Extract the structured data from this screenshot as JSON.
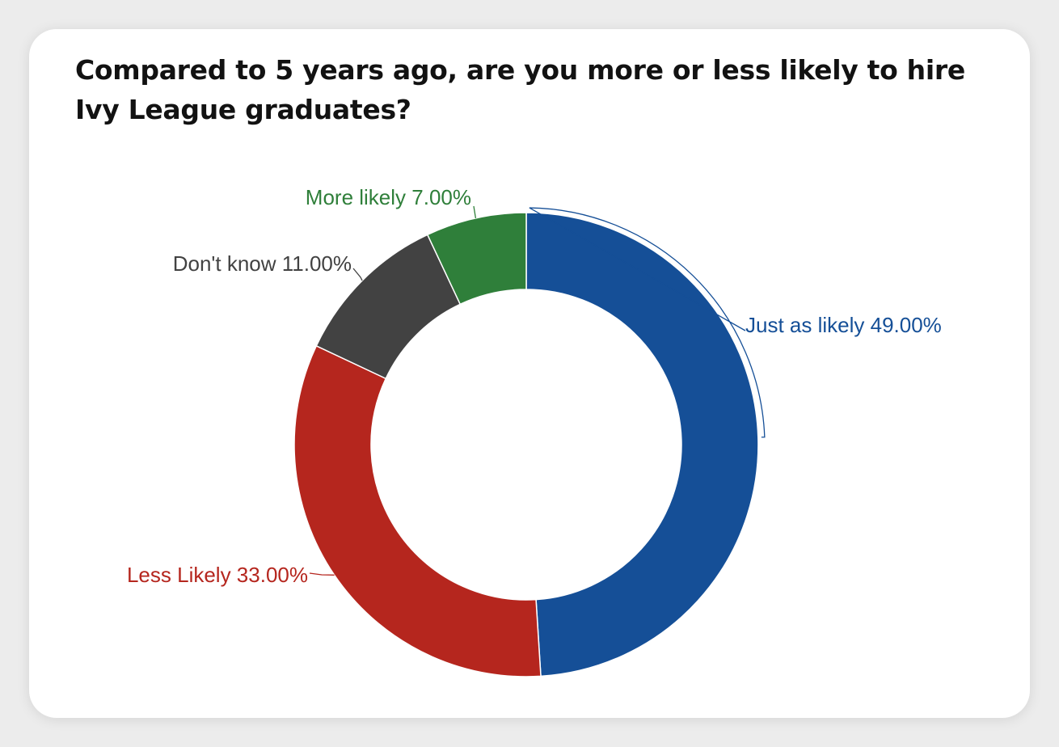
{
  "chart_data": {
    "type": "pie",
    "variant": "donut",
    "title": "Compared to 5 years ago, are you more or less likely to hire Ivy League graduates?",
    "slices": [
      {
        "label": "Just as likely",
        "value": 49.0,
        "display": "49.00%",
        "color": "#154f97"
      },
      {
        "label": "Less Likely",
        "value": 33.0,
        "display": "33.00%",
        "color": "#b5261e"
      },
      {
        "label": "Don't know",
        "value": 11.0,
        "display": "11.00%",
        "color": "#424242"
      },
      {
        "label": "More likely",
        "value": 7.0,
        "display": "7.00%",
        "color": "#2f7f3a"
      }
    ]
  }
}
